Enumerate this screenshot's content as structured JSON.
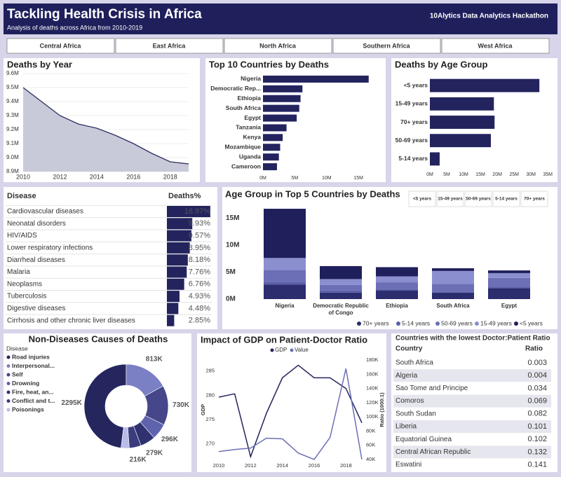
{
  "header": {
    "title": "Tackling Health Crisis in Africa",
    "subtitle": "Analysis of deaths across Africa from 2010-2019",
    "brand": "10Alytics Data Analytics Hackathon"
  },
  "tabs": [
    "Central Africa",
    "East Africa",
    "North Africa",
    "Southern Africa",
    "West Africa"
  ],
  "chart_data": [
    {
      "type": "area",
      "title": "Deaths by Year",
      "color": "#2d2f5e",
      "fill": "#c8cad9",
      "x": [
        2010,
        2011,
        2012,
        2013,
        2014,
        2015,
        2016,
        2017,
        2018,
        2019
      ],
      "values": [
        9500000,
        9400000,
        9300000,
        9240000,
        9210000,
        9160000,
        9100000,
        9030000,
        8970000,
        8955000
      ],
      "xlim": [
        2010,
        2019
      ],
      "xticks": [
        2010,
        2012,
        2014,
        2016,
        2018
      ],
      "ylim": [
        8900000,
        9600000
      ],
      "yticks": [
        {
          "value": 8900000,
          "label": "8.9M"
        },
        {
          "value": 9000000,
          "label": "9.0M"
        },
        {
          "value": 9100000,
          "label": "9.1M"
        },
        {
          "value": 9200000,
          "label": "9.2M"
        },
        {
          "value": 9300000,
          "label": "9.3M"
        },
        {
          "value": 9400000,
          "label": "9.4M"
        },
        {
          "value": 9500000,
          "label": "9.5M"
        },
        {
          "value": 9600000,
          "label": "9.6M"
        }
      ]
    },
    {
      "type": "hbar",
      "title": "Top 10 Countries by Deaths",
      "color": "#23245e",
      "categories": [
        "Nigeria",
        "Democratic Rep...",
        "Ethiopia",
        "South Africa",
        "Egypt",
        "Tanzania",
        "Kenya",
        "Mozambique",
        "Uganda",
        "Cameroon"
      ],
      "values": [
        16600000,
        6200000,
        5900000,
        5700000,
        5300000,
        3700000,
        3100000,
        2700000,
        2500000,
        2200000
      ],
      "xlim": [
        0,
        18500000
      ],
      "xticks": [
        {
          "value": 0,
          "label": "0M"
        },
        {
          "value": 5000000,
          "label": "5M"
        },
        {
          "value": 10000000,
          "label": "10M"
        },
        {
          "value": 15000000,
          "label": "15M"
        }
      ]
    },
    {
      "type": "hbar",
      "title": "Deaths by Age Group",
      "color": "#23245e",
      "categories": [
        "<5 years",
        "15-49 years",
        "70+ years",
        "50-69 years",
        "5-14 years"
      ],
      "values": [
        32500000,
        19000000,
        19200000,
        18100000,
        2900000
      ],
      "xlim": [
        0,
        36000000
      ],
      "xticks": [
        {
          "value": 0,
          "label": "0M"
        },
        {
          "value": 5000000,
          "label": "5M"
        },
        {
          "value": 10000000,
          "label": "10M"
        },
        {
          "value": 15000000,
          "label": "15M"
        },
        {
          "value": 20000000,
          "label": "20M"
        },
        {
          "value": 25000000,
          "label": "25M"
        },
        {
          "value": 30000000,
          "label": "30M"
        },
        {
          "value": 35000000,
          "label": "35M"
        }
      ]
    },
    {
      "type": "tablebar",
      "columns": [
        "Disease",
        "Deaths%"
      ],
      "color": "#23245e",
      "categories": [
        "Cardiovascular diseases",
        "Neonatal disorders",
        "HIV/AIDS",
        "Lower respiratory infections",
        "Diarrheal diseases",
        "Malaria",
        "Neoplasms",
        "Tuberculosis",
        "Digestive diseases",
        "Cirrhosis and other chronic liver diseases"
      ],
      "values": [
        16.97,
        9.93,
        9.57,
        8.95,
        8.18,
        7.76,
        6.76,
        4.93,
        4.48,
        2.85
      ],
      "value_labels": [
        "16.97%",
        "9.93%",
        "9.57%",
        "8.95%",
        "8.18%",
        "7.76%",
        "6.76%",
        "4.93%",
        "4.48%",
        "2.85%"
      ]
    },
    {
      "type": "stacked",
      "title": "Age Group in Top 5 Countries by Deaths",
      "slicer": [
        "<5 years",
        "15-49 years",
        "50-69 years",
        "5-14 years",
        "70+ years"
      ],
      "categories": [
        "Nigeria",
        "Democratic Republic of Congo",
        "Ethiopia",
        "South Africa",
        "Egypt"
      ],
      "series": [
        {
          "name": "70+ years",
          "color": "#2b2d6e",
          "values": [
            2700000,
            1200000,
            1600000,
            1200000,
            2000000
          ]
        },
        {
          "name": "5-14 years",
          "color": "#5a5ea8",
          "values": [
            500000,
            400000,
            300000,
            200000,
            200000
          ]
        },
        {
          "name": "50-69 years",
          "color": "#6c6fb5",
          "values": [
            2200000,
            1000000,
            1200000,
            1400000,
            1700000
          ]
        },
        {
          "name": "15-49 years",
          "color": "#8b8fcf",
          "values": [
            2200000,
            1100000,
            1100000,
            2400000,
            900000
          ]
        },
        {
          "name": "<5 years",
          "color": "#1f1f5c",
          "values": [
            9100000,
            2400000,
            1700000,
            500000,
            500000
          ]
        }
      ],
      "ylim": [
        0,
        18000000
      ],
      "yticks": [
        {
          "value": 0,
          "label": "0M"
        },
        {
          "value": 5000000,
          "label": "5M"
        },
        {
          "value": 10000000,
          "label": "10M"
        },
        {
          "value": 15000000,
          "label": "15M"
        }
      ]
    },
    {
      "type": "donut",
      "title": "Non-Diseases Causes of Deaths",
      "legend_title": "Disease",
      "categories": [
        "Road injuries",
        "Interpersonal...",
        "Self",
        "Drowning",
        "Fire, heat, an...",
        "Conflict and t...",
        "Poisonings"
      ],
      "values": [
        2295,
        813,
        730,
        296,
        279,
        216,
        150
      ],
      "value_labels": [
        "2295K",
        "813K",
        "730K",
        "296K",
        "279K",
        "216K",
        null
      ],
      "colors": [
        "#25265e",
        "#7b7fc4",
        "#45478a",
        "#5f63ad",
        "#2f3170",
        "#3a3c7e",
        "#b9bce6"
      ]
    },
    {
      "type": "line",
      "title": "Impact of GDP on Patient-Doctor Ratio",
      "ylabel": "GDP",
      "y2label": "Ratio (1000:1)",
      "x": [
        2010,
        2011,
        2012,
        2013,
        2014,
        2015,
        2016,
        2017,
        2018,
        2019
      ],
      "series": [
        {
          "name": "GDP",
          "color": "#23245e",
          "values": [
            279.6,
            280.3,
            267.3,
            276.3,
            283.6,
            286.2,
            283.6,
            283.6,
            281.4,
            274.3
          ]
        },
        {
          "name": "Value",
          "color": "#6c6fb5",
          "axis": "y2",
          "values": [
            51000,
            54000,
            56000,
            70000,
            69000,
            49000,
            40000,
            71000,
            168000,
            40000
          ]
        }
      ],
      "xlim": [
        2010,
        2019
      ],
      "xticks": [
        2010,
        2012,
        2014,
        2016,
        2018
      ],
      "ylim": [
        266,
        288
      ],
      "yticks": [
        270,
        275,
        280,
        285
      ],
      "y2lim": [
        35000,
        185000
      ],
      "y2ticks": [
        {
          "value": 40000,
          "label": "40K"
        },
        {
          "value": 60000,
          "label": "60K"
        },
        {
          "value": 80000,
          "label": "80K"
        },
        {
          "value": 100000,
          "label": "100K"
        },
        {
          "value": 120000,
          "label": "120K"
        },
        {
          "value": 140000,
          "label": "140K"
        },
        {
          "value": 160000,
          "label": "160K"
        },
        {
          "value": 180000,
          "label": "180K"
        }
      ]
    }
  ],
  "ratio_table": {
    "title": "Countries with the lowest Doctor:Patient Ratio",
    "columns": [
      "Country",
      "Ratio"
    ],
    "rows": [
      [
        "South Africa",
        0.003
      ],
      [
        "Algeria",
        0.004
      ],
      [
        "Sao Tome and Principe",
        0.034
      ],
      [
        "Comoros",
        0.069
      ],
      [
        "South Sudan",
        0.082
      ],
      [
        "Liberia",
        0.101
      ],
      [
        "Equatorial Guinea",
        0.102
      ],
      [
        "Central African Republic",
        0.132
      ],
      [
        "Eswatini",
        0.141
      ]
    ]
  }
}
